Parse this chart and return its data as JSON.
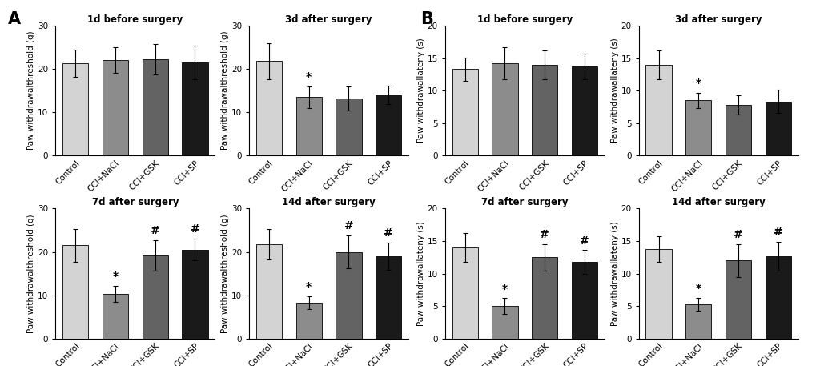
{
  "panel_A": {
    "subplots": [
      {
        "title": "1d before surgery",
        "ylabel": "Paw withdrawalthreshold (g)",
        "ylim": [
          0,
          30
        ],
        "yticks": [
          0,
          10,
          20,
          30
        ],
        "categories": [
          "Control",
          "CCI+NaCl",
          "CCI+GSK",
          "CCI+SP"
        ],
        "values": [
          21.3,
          22.0,
          22.2,
          21.5
        ],
        "errors": [
          3.2,
          3.0,
          3.5,
          3.8
        ],
        "sig_above": [
          "",
          "",
          "",
          ""
        ],
        "colors": [
          "#d3d3d3",
          "#8c8c8c",
          "#636363",
          "#1a1a1a"
        ]
      },
      {
        "title": "3d after surgery",
        "ylabel": "Paw withdrawalthreshold (g)",
        "ylim": [
          0,
          30
        ],
        "yticks": [
          0,
          10,
          20,
          30
        ],
        "categories": [
          "Control",
          "CCI+NaCl",
          "CCI+GSK",
          "CCI+SP"
        ],
        "values": [
          21.8,
          13.5,
          13.2,
          14.0
        ],
        "errors": [
          4.2,
          2.5,
          2.8,
          2.2
        ],
        "sig_above": [
          "",
          "*",
          "",
          ""
        ],
        "colors": [
          "#d3d3d3",
          "#8c8c8c",
          "#636363",
          "#1a1a1a"
        ]
      },
      {
        "title": "7d after surgery",
        "ylabel": "Paw withdrawalthreshold (g)",
        "ylim": [
          0,
          30
        ],
        "yticks": [
          0,
          10,
          20,
          30
        ],
        "categories": [
          "Control",
          "CCI+NaCl",
          "CCI+GSK",
          "CCI+SP"
        ],
        "values": [
          21.5,
          10.3,
          19.2,
          20.5
        ],
        "errors": [
          3.8,
          1.8,
          3.5,
          2.5
        ],
        "sig_above": [
          "",
          "*",
          "#",
          "#"
        ],
        "colors": [
          "#d3d3d3",
          "#8c8c8c",
          "#636363",
          "#1a1a1a"
        ]
      },
      {
        "title": "14d after surgery",
        "ylabel": "Paw withdrawalthreshold (g)",
        "ylim": [
          0,
          30
        ],
        "yticks": [
          0,
          10,
          20,
          30
        ],
        "categories": [
          "Control",
          "CCI+NaCl",
          "CCI+GSK",
          "CCI+SP"
        ],
        "values": [
          21.8,
          8.3,
          20.0,
          19.0
        ],
        "errors": [
          3.5,
          1.5,
          3.8,
          3.2
        ],
        "sig_above": [
          "",
          "*",
          "#",
          "#"
        ],
        "colors": [
          "#d3d3d3",
          "#8c8c8c",
          "#636363",
          "#1a1a1a"
        ]
      }
    ]
  },
  "panel_B": {
    "subplots": [
      {
        "title": "1d before surgery",
        "ylabel": "Paw withdrawallateny (s)",
        "ylim": [
          0,
          20
        ],
        "yticks": [
          0,
          5,
          10,
          15,
          20
        ],
        "categories": [
          "Control",
          "CCI+NaCl",
          "CCI+GSK",
          "CCI+SP"
        ],
        "values": [
          13.3,
          14.2,
          14.0,
          13.7
        ],
        "errors": [
          1.8,
          2.5,
          2.2,
          2.0
        ],
        "sig_above": [
          "",
          "",
          "",
          ""
        ],
        "colors": [
          "#d3d3d3",
          "#8c8c8c",
          "#636363",
          "#1a1a1a"
        ]
      },
      {
        "title": "3d after surgery",
        "ylabel": "Paw withdrawallateny (s)",
        "ylim": [
          0,
          20
        ],
        "yticks": [
          0,
          5,
          10,
          15,
          20
        ],
        "categories": [
          "Control",
          "CCI+NaCl",
          "CCI+GSK",
          "CCI+SP"
        ],
        "values": [
          14.0,
          8.5,
          7.8,
          8.3
        ],
        "errors": [
          2.2,
          1.2,
          1.5,
          1.8
        ],
        "sig_above": [
          "",
          "*",
          "",
          ""
        ],
        "colors": [
          "#d3d3d3",
          "#8c8c8c",
          "#636363",
          "#1a1a1a"
        ]
      },
      {
        "title": "7d after surgery",
        "ylabel": "Paw withdrawallateny (s)",
        "ylim": [
          0,
          20
        ],
        "yticks": [
          0,
          5,
          10,
          15,
          20
        ],
        "categories": [
          "Control",
          "CCI+NaCl",
          "CCI+GSK",
          "CCI+SP"
        ],
        "values": [
          14.0,
          5.0,
          12.5,
          11.8
        ],
        "errors": [
          2.2,
          1.2,
          2.0,
          1.8
        ],
        "sig_above": [
          "",
          "*",
          "#",
          "#"
        ],
        "colors": [
          "#d3d3d3",
          "#8c8c8c",
          "#636363",
          "#1a1a1a"
        ]
      },
      {
        "title": "14d after surgery",
        "ylabel": "Paw withdrawallateny (s)",
        "ylim": [
          0,
          20
        ],
        "yticks": [
          0,
          5,
          10,
          15,
          20
        ],
        "categories": [
          "Control",
          "CCI+NaCl",
          "CCI+GSK",
          "CCI+SP"
        ],
        "values": [
          13.8,
          5.3,
          12.0,
          12.7
        ],
        "errors": [
          2.0,
          1.0,
          2.5,
          2.2
        ],
        "sig_above": [
          "",
          "*",
          "#",
          "#"
        ],
        "colors": [
          "#d3d3d3",
          "#8c8c8c",
          "#636363",
          "#1a1a1a"
        ]
      }
    ]
  },
  "background_color": "#ffffff",
  "bar_width": 0.65,
  "fontsize_title": 8.5,
  "fontsize_label": 7.5,
  "fontsize_tick": 7.5,
  "fontsize_sig": 10,
  "fontsize_panel": 15
}
